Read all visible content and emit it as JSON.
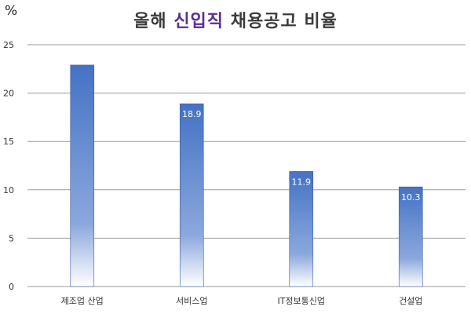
{
  "chart_data": {
    "type": "bar",
    "title": {
      "prefix": "올해 ",
      "highlight": "신입직",
      "suffix": " 채용공고 비율"
    },
    "ylabel": "%",
    "xlabel": "",
    "ylim": [
      0,
      25
    ],
    "yticks": [
      0,
      5,
      10,
      15,
      20,
      25
    ],
    "grid": true,
    "legend": "none",
    "categories": [
      "제조업 산업",
      "서비스업",
      "IT정보통신업",
      "건설업"
    ],
    "values": [
      22.9,
      18.9,
      11.9,
      10.3
    ],
    "data_labels": [
      "",
      "18.9",
      "11.9",
      "10.3"
    ]
  },
  "colors": {
    "bar_top": "#4472c4",
    "bar_bottom": "#ffffff",
    "highlight": "#5c2d91",
    "grid": "#9a9a9a",
    "data_label": "#ffffff"
  }
}
